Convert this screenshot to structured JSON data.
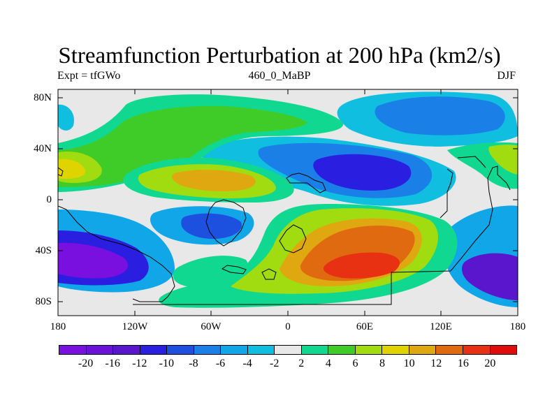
{
  "title": "Streamfunction Perturbation at 200 hPa (km2/s)",
  "subtitle_left": "Expt = tfGWo",
  "subtitle_center": "460_0_MaBP",
  "subtitle_right": "DJF",
  "lat_labels": [
    "80N",
    "40N",
    "0",
    "40S",
    "80S"
  ],
  "lon_labels": [
    "180",
    "120W",
    "60W",
    "0",
    "60E",
    "120E",
    "180"
  ],
  "colorbar": {
    "labels": [
      "-20",
      "-16",
      "-12",
      "-10",
      "-8",
      "-6",
      "-4",
      "-2",
      "2",
      "4",
      "6",
      "8",
      "10",
      "12",
      "16",
      "20"
    ],
    "colors": [
      "#7a10e0",
      "#6a12d8",
      "#5a16cc",
      "#2a1ee0",
      "#1e50e0",
      "#1a80e8",
      "#10a6e8",
      "#10bee0",
      "#e8e8e8",
      "#10d890",
      "#40cc28",
      "#a0dc10",
      "#e0d400",
      "#e0a810",
      "#e06a10",
      "#e83012",
      "#e00c0c"
    ]
  },
  "field_colors": {
    "neg20": "#7a10e0",
    "neg16": "#6a12d8",
    "neg12": "#5a16cc",
    "neg10": "#2a1ee0",
    "neg8": "#1e50e0",
    "neg6": "#1a80e8",
    "neg4": "#10a6e8",
    "neg2": "#10bee0",
    "zero": "#e8e8e8",
    "pos2": "#10d890",
    "pos4": "#40cc28",
    "pos6": "#a0dc10",
    "pos8": "#e0d400",
    "pos10": "#e0a810",
    "pos12": "#e06a10",
    "pos16": "#e83012",
    "pos20": "#e00c0c"
  }
}
